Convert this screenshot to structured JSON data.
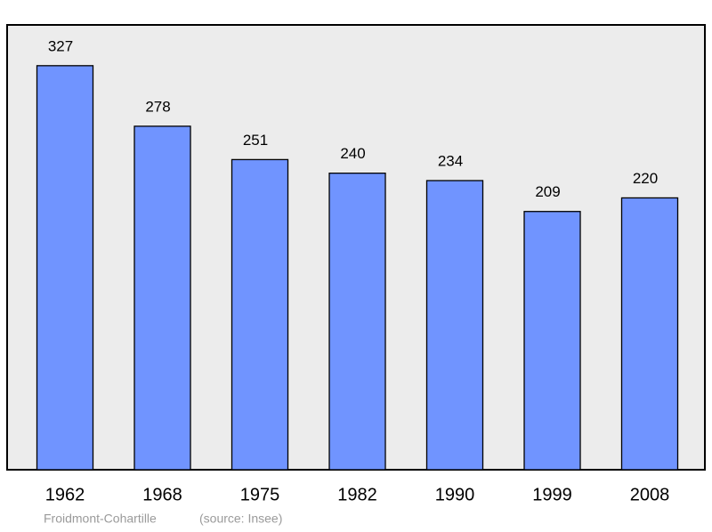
{
  "chart_data": {
    "type": "bar",
    "categories": [
      "1962",
      "1968",
      "1975",
      "1982",
      "1990",
      "1999",
      "2008"
    ],
    "values": [
      327,
      278,
      251,
      240,
      234,
      209,
      220
    ],
    "color": "#7094ff",
    "ylim": [
      0,
      360
    ],
    "place": "Froidmont-Cohartille",
    "source": "(source: Insee)"
  }
}
